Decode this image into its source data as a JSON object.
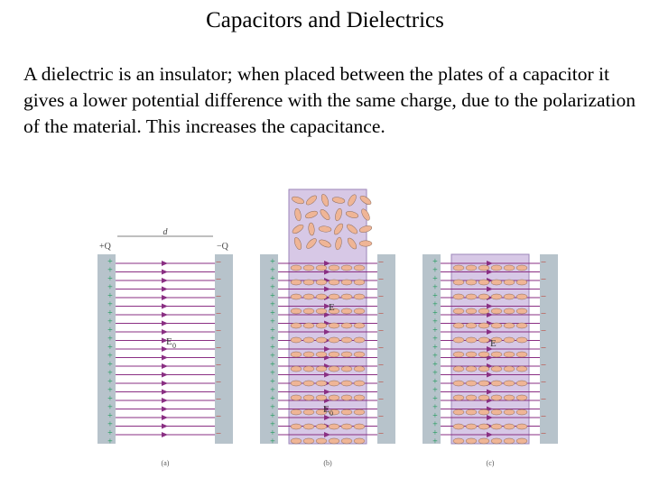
{
  "slide": {
    "title": "Capacitors and Dielectrics",
    "body": "A dielectric is an insulator; when placed between the plates of a capacitor it gives a lower potential difference with the same charge, due to the polarization of the material. This increases the capacitance."
  },
  "figure": {
    "panels": [
      {
        "label": "(a)",
        "has_dielectric": false,
        "annotations": {
          "plus_charge": "+Q",
          "minus_charge": "−Q",
          "separation": "d",
          "field": "E",
          "field_sub": "0"
        }
      },
      {
        "label": "(b)",
        "has_dielectric": true,
        "dielectric_partly_inserted": true,
        "annotations": {
          "field": "E",
          "field_sub": "",
          "field0": "E",
          "field0_sub": "0"
        }
      },
      {
        "label": "(c)",
        "has_dielectric": true,
        "dielectric_partly_inserted": false,
        "annotations": {
          "field": "E",
          "field_sub": ""
        }
      }
    ],
    "colors": {
      "field_line": "#8a2f83",
      "plate": "#b7c3cb",
      "plus_sign": "#1f9a5a",
      "minus_sign": "#c0392b",
      "dielectric": "#d7c8e6",
      "molecule": "#efb596"
    }
  }
}
